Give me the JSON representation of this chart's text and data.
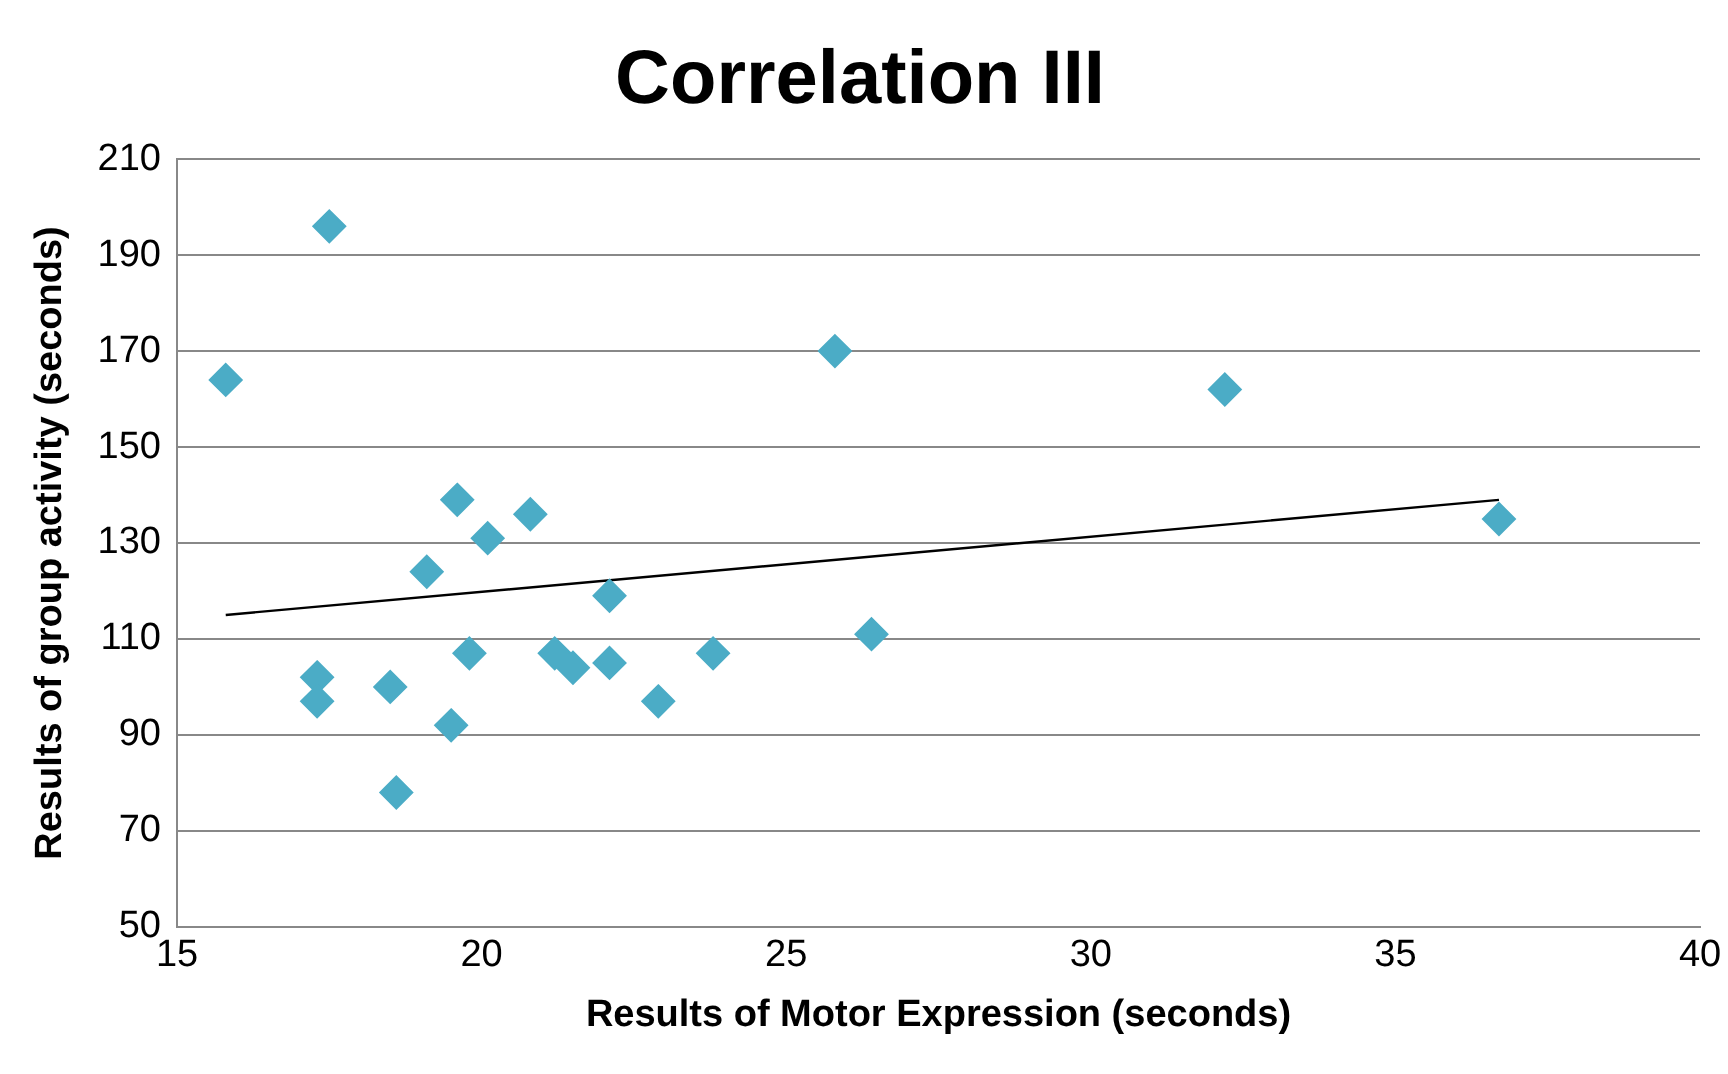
{
  "chart_data": {
    "type": "scatter",
    "title": "Correlation III",
    "xlabel": "Results of Motor Expression (seconds)",
    "ylabel": "Results of group activity (seconds)",
    "series": [
      {
        "color": "#4bacc6",
        "marker": "diamond",
        "x": [
          15.8,
          17.5,
          19.6,
          20.1,
          20.8,
          19.1,
          22.1,
          17.3,
          17.3,
          18.5,
          19.8,
          19.5,
          18.6,
          21.2,
          21.5,
          22.1,
          22.9,
          23.8,
          25.8,
          26.4,
          32.2,
          36.7
        ],
        "values": [
          164,
          196,
          139,
          131,
          136,
          124,
          119,
          102,
          97,
          100,
          107,
          92,
          78,
          107,
          104,
          105,
          97,
          107,
          170,
          111,
          162,
          135
        ]
      },
      {
        "type": "line",
        "color": "#000000",
        "marker": "none",
        "line_style": "solid",
        "x": [
          15.8,
          36.7
        ],
        "values": [
          115,
          139
        ]
      }
    ],
    "xlim": [
      15,
      40
    ],
    "xticks": [
      15,
      20,
      25,
      30,
      35,
      40
    ],
    "ylim": [
      50,
      210
    ],
    "yticks": [
      50,
      70,
      90,
      110,
      130,
      150,
      170,
      190,
      210
    ],
    "grid": "y",
    "legend": false
  }
}
